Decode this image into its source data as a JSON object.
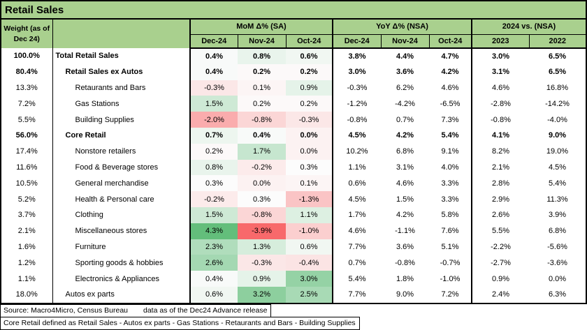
{
  "title": "Retail Sales",
  "header": {
    "weight_label": "Weight (as of Dec 24)",
    "groups": [
      {
        "label": "MoM Δ% (SA)",
        "cols": [
          "Dec-24",
          "Nov-24",
          "Oct-24"
        ]
      },
      {
        "label": "YoY Δ% (NSA)",
        "cols": [
          "Dec-24",
          "Nov-24",
          "Oct-24"
        ]
      },
      {
        "label": "2024 vs. (NSA)",
        "cols": [
          "2023",
          "2022"
        ]
      }
    ]
  },
  "heatmap": {
    "applies_to": "mom",
    "green_hex": "#63be7b",
    "red_hex": "#f8696b",
    "neutral_hex": "#fcfcfc",
    "scale_max": 4.3,
    "scale_mid": 0.3,
    "scale_min": -3.9
  },
  "rows": [
    {
      "weight": "100.0%",
      "name": "Total Retail Sales",
      "indent": 0,
      "bold": true,
      "mom": [
        0.4,
        0.8,
        0.6
      ],
      "yoy": [
        3.8,
        4.4,
        4.7
      ],
      "vs": [
        3.0,
        6.5
      ]
    },
    {
      "weight": "80.4%",
      "name": "Retail Sales ex Autos",
      "indent": 1,
      "bold": true,
      "mom": [
        0.4,
        0.2,
        0.2
      ],
      "yoy": [
        3.0,
        3.6,
        4.2
      ],
      "vs": [
        3.1,
        6.5
      ]
    },
    {
      "weight": "13.3%",
      "name": "Retaurants and Bars",
      "indent": 2,
      "bold": false,
      "mom": [
        -0.3,
        0.1,
        0.9
      ],
      "yoy": [
        -0.3,
        6.2,
        4.6
      ],
      "vs": [
        4.6,
        16.8
      ]
    },
    {
      "weight": "7.2%",
      "name": "Gas Stations",
      "indent": 2,
      "bold": false,
      "mom": [
        1.5,
        0.2,
        0.2
      ],
      "yoy": [
        -1.2,
        -4.2,
        -6.5
      ],
      "vs": [
        -2.8,
        -14.2
      ]
    },
    {
      "weight": "5.5%",
      "name": "Building Supplies",
      "indent": 2,
      "bold": false,
      "mom": [
        -2.0,
        -0.8,
        -0.3
      ],
      "yoy": [
        -0.8,
        0.7,
        7.3
      ],
      "vs": [
        -0.8,
        -4.0
      ]
    },
    {
      "weight": "56.0%",
      "name": "Core Retail",
      "indent": 1,
      "bold": true,
      "mom": [
        0.7,
        0.4,
        0.0
      ],
      "yoy": [
        4.5,
        4.2,
        5.4
      ],
      "vs": [
        4.1,
        9.0
      ]
    },
    {
      "weight": "17.4%",
      "name": "Nonstore retailers",
      "indent": 2,
      "bold": false,
      "mom": [
        0.2,
        1.7,
        0.0
      ],
      "yoy": [
        10.2,
        6.8,
        9.1
      ],
      "vs": [
        8.2,
        19.0
      ]
    },
    {
      "weight": "11.6%",
      "name": "Food & Beverage stores",
      "indent": 2,
      "bold": false,
      "mom": [
        0.8,
        -0.2,
        0.3
      ],
      "yoy": [
        1.1,
        3.1,
        4.0
      ],
      "vs": [
        2.1,
        4.5
      ]
    },
    {
      "weight": "10.5%",
      "name": "General merchandise",
      "indent": 2,
      "bold": false,
      "mom": [
        0.3,
        0.0,
        0.1
      ],
      "yoy": [
        0.6,
        4.6,
        3.3
      ],
      "vs": [
        2.8,
        5.4
      ]
    },
    {
      "weight": "5.2%",
      "name": "Health & Personal care",
      "indent": 2,
      "bold": false,
      "mom": [
        -0.2,
        0.3,
        -1.3
      ],
      "yoy": [
        4.5,
        1.5,
        3.3
      ],
      "vs": [
        2.9,
        11.3
      ]
    },
    {
      "weight": "3.7%",
      "name": "Clothing",
      "indent": 2,
      "bold": false,
      "mom": [
        1.5,
        -0.8,
        1.1
      ],
      "yoy": [
        1.7,
        4.2,
        5.8
      ],
      "vs": [
        2.6,
        3.9
      ]
    },
    {
      "weight": "2.1%",
      "name": "Miscellaneous stores",
      "indent": 2,
      "bold": false,
      "mom": [
        4.3,
        -3.9,
        -1.0
      ],
      "yoy": [
        4.6,
        -1.1,
        7.6
      ],
      "vs": [
        5.5,
        6.8
      ]
    },
    {
      "weight": "1.6%",
      "name": "Furniture",
      "indent": 2,
      "bold": false,
      "mom": [
        2.3,
        1.3,
        0.6
      ],
      "yoy": [
        7.7,
        3.6,
        5.1
      ],
      "vs": [
        -2.2,
        -5.6
      ]
    },
    {
      "weight": "1.2%",
      "name": "Sporting goods & hobbies",
      "indent": 2,
      "bold": false,
      "mom": [
        2.6,
        -0.3,
        -0.4
      ],
      "yoy": [
        0.7,
        -0.8,
        -0.7
      ],
      "vs": [
        -2.7,
        -3.6
      ]
    },
    {
      "weight": "1.1%",
      "name": "Electronics & Appliances",
      "indent": 2,
      "bold": false,
      "mom": [
        0.4,
        0.9,
        3.0
      ],
      "yoy": [
        5.4,
        1.8,
        -1.0
      ],
      "vs": [
        0.9,
        0.0
      ]
    },
    {
      "weight": "18.0%",
      "name": "Autos ex parts",
      "indent": 1,
      "bold": false,
      "mom": [
        0.6,
        3.2,
        2.5
      ],
      "yoy": [
        7.7,
        9.0,
        7.2
      ],
      "vs": [
        2.4,
        6.3
      ]
    }
  ],
  "footer": {
    "source": "Source: Macro4Micro, Census Bureau",
    "asof": "data as of the Dec24 Advance release",
    "definition": "Core Retail defined as Retail Sales - Autos ex parts - Gas Stations - Retaurants and Bars - Building Supplies"
  }
}
